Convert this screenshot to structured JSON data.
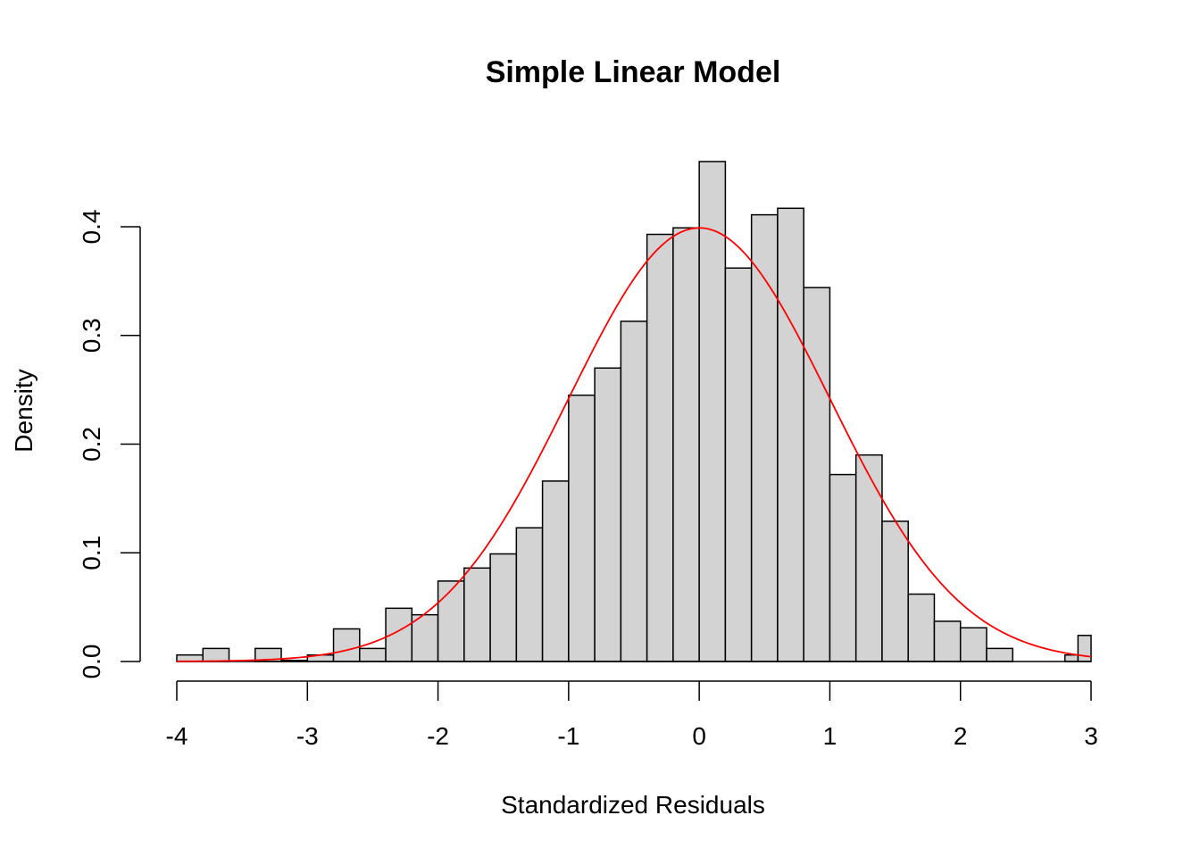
{
  "chart_data": {
    "type": "bar",
    "title": "Simple Linear Model",
    "xlabel": "Standardized Residuals",
    "ylabel": "Density",
    "xlim": [
      -4,
      3
    ],
    "ylim": [
      0,
      0.4
    ],
    "x_ticks": [
      "-4",
      "-3",
      "-2",
      "-1",
      "0",
      "1",
      "2",
      "3"
    ],
    "y_ticks": [
      "0.0",
      "0.1",
      "0.2",
      "0.3",
      "0.4"
    ],
    "bin_width": 0.2,
    "bins": [
      {
        "start": -4.0,
        "density": 0.006
      },
      {
        "start": -3.8,
        "density": 0.012
      },
      {
        "start": -3.6,
        "density": 0.0
      },
      {
        "start": -3.4,
        "density": 0.012
      },
      {
        "start": -3.2,
        "density": 0.001
      },
      {
        "start": -3.0,
        "density": 0.006
      },
      {
        "start": -2.8,
        "density": 0.03
      },
      {
        "start": -2.6,
        "density": 0.012
      },
      {
        "start": -2.4,
        "density": 0.049
      },
      {
        "start": -2.2,
        "density": 0.043
      },
      {
        "start": -2.0,
        "density": 0.074
      },
      {
        "start": -1.8,
        "density": 0.086
      },
      {
        "start": -1.6,
        "density": 0.099
      },
      {
        "start": -1.4,
        "density": 0.123
      },
      {
        "start": -1.2,
        "density": 0.166
      },
      {
        "start": -1.0,
        "density": 0.245
      },
      {
        "start": -0.8,
        "density": 0.27
      },
      {
        "start": -0.6,
        "density": 0.313
      },
      {
        "start": -0.4,
        "density": 0.393
      },
      {
        "start": -0.2,
        "density": 0.399
      },
      {
        "start": 0.0,
        "density": 0.46
      },
      {
        "start": 0.2,
        "density": 0.362
      },
      {
        "start": 0.4,
        "density": 0.411
      },
      {
        "start": 0.6,
        "density": 0.417
      },
      {
        "start": 0.8,
        "density": 0.344
      },
      {
        "start": 1.0,
        "density": 0.172
      },
      {
        "start": 1.2,
        "density": 0.19
      },
      {
        "start": 1.4,
        "density": 0.129
      },
      {
        "start": 1.6,
        "density": 0.062
      },
      {
        "start": 1.8,
        "density": 0.037
      },
      {
        "start": 2.0,
        "density": 0.031
      },
      {
        "start": 2.2,
        "density": 0.012
      },
      {
        "start": 2.4,
        "density": 0.0
      },
      {
        "start": 2.6,
        "density": 0.0
      },
      {
        "start": 2.8,
        "density": 0.006
      },
      {
        "start": 2.9,
        "density": 0.024
      }
    ],
    "curve": {
      "type": "normal-density",
      "mean": 0,
      "sd": 1,
      "x_range": [
        -4,
        3
      ],
      "color": "#ff0000"
    },
    "bar_fill": "#d3d3d3",
    "bar_stroke": "#000000"
  }
}
